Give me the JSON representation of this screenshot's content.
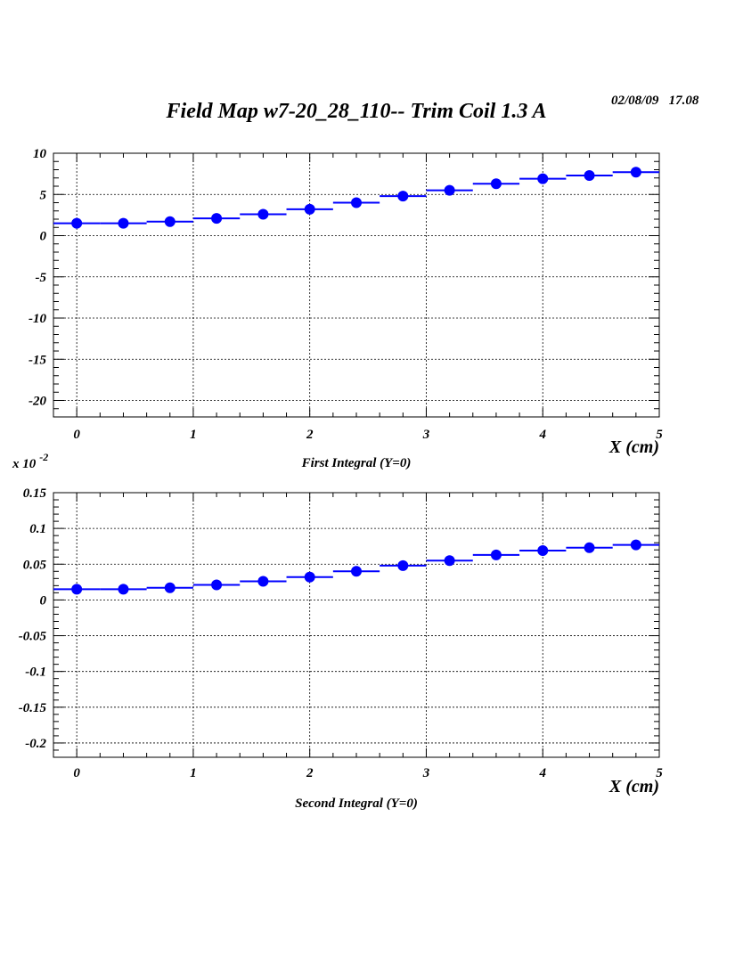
{
  "page": {
    "title": "Field Map w7-20_28_110-- Trim Coil 1.3 A",
    "date": "02/08/09",
    "time": "17.08"
  },
  "chart_data": [
    {
      "type": "scatter",
      "title": "First Integral (Y=0)",
      "xlabel": "X (cm)",
      "ylabel": "",
      "exponent_label": "",
      "xlim": [
        -0.2,
        5
      ],
      "ylim": [
        -22,
        10
      ],
      "x_ticks": [
        0,
        1,
        2,
        3,
        4,
        5
      ],
      "y_ticks": [
        10,
        5,
        0,
        -5,
        -10,
        -15,
        -20
      ],
      "y_tick_labels": [
        "10",
        "5",
        "0",
        "-5",
        "-10",
        "-15",
        "-20"
      ],
      "grid": true,
      "bin_width": 0.4,
      "marker_color": "#0000ff",
      "series": [
        {
          "x": [
            0,
            0.4,
            0.8,
            1.2,
            1.6,
            2.0,
            2.4,
            2.8,
            3.2,
            3.6,
            4.0,
            4.4,
            4.8
          ],
          "y": [
            1.5,
            1.5,
            1.7,
            2.1,
            2.6,
            3.2,
            4.0,
            4.8,
            5.5,
            6.3,
            6.9,
            7.3,
            7.7
          ]
        }
      ]
    },
    {
      "type": "scatter",
      "title": "Second Integral (Y=0)",
      "xlabel": "X (cm)",
      "ylabel": "",
      "exponent_label": "x 10",
      "exponent_power": "-2",
      "xlim": [
        -0.2,
        5
      ],
      "ylim": [
        -0.22,
        0.15
      ],
      "x_ticks": [
        0,
        1,
        2,
        3,
        4,
        5
      ],
      "y_ticks": [
        0.15,
        0.1,
        0.05,
        0,
        -0.05,
        -0.1,
        -0.15,
        -0.2
      ],
      "y_tick_labels": [
        "0.15",
        "0.1",
        "0.05",
        "0",
        "-0.05",
        "-0.1",
        "-0.15",
        "-0.2"
      ],
      "grid": true,
      "bin_width": 0.4,
      "marker_color": "#0000ff",
      "series": [
        {
          "x": [
            0,
            0.4,
            0.8,
            1.2,
            1.6,
            2.0,
            2.4,
            2.8,
            3.2,
            3.6,
            4.0,
            4.4,
            4.8
          ],
          "y": [
            0.015,
            0.015,
            0.017,
            0.021,
            0.026,
            0.032,
            0.04,
            0.048,
            0.055,
            0.063,
            0.069,
            0.073,
            0.077
          ]
        }
      ]
    }
  ]
}
